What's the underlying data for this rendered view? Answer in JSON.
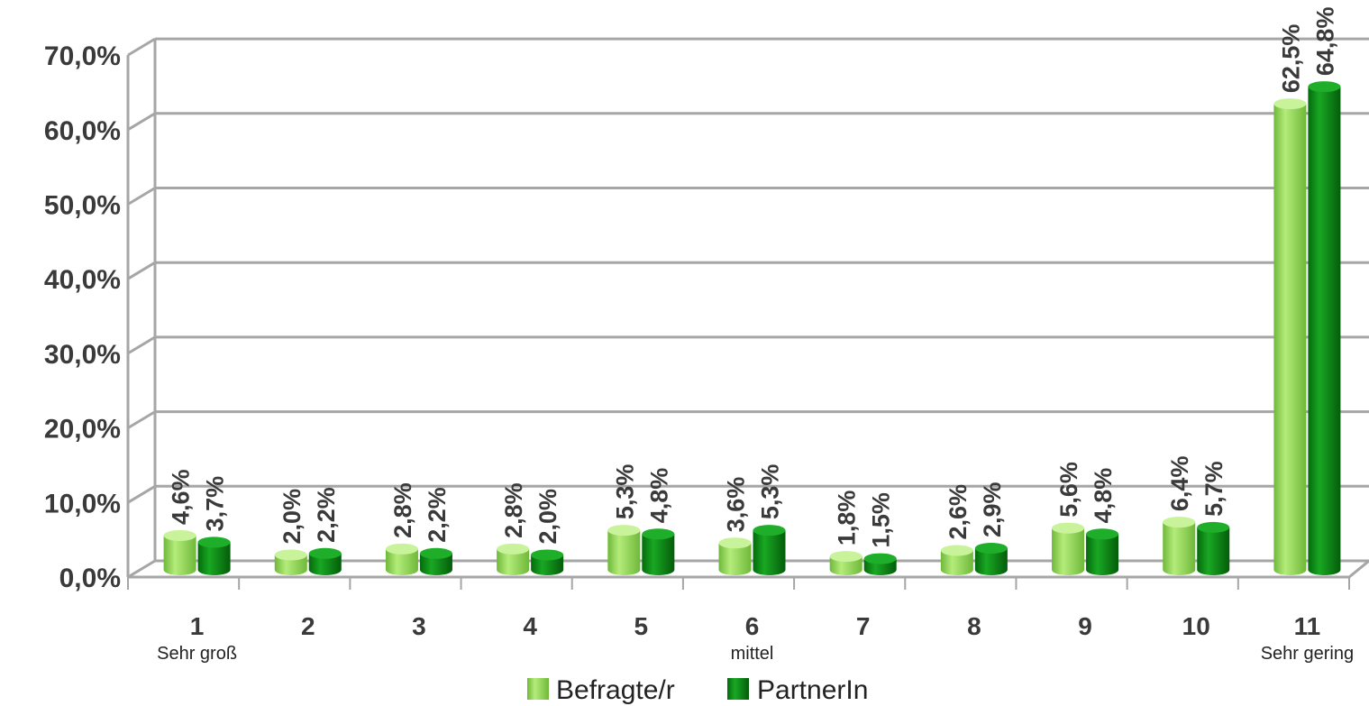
{
  "chart_data": {
    "type": "bar",
    "categories": [
      "1",
      "2",
      "3",
      "4",
      "5",
      "6",
      "7",
      "8",
      "9",
      "10",
      "11"
    ],
    "category_sublabels": [
      "Sehr groß",
      "",
      "",
      "",
      "",
      "mittel",
      "",
      "",
      "",
      "",
      "Sehr gering"
    ],
    "series": [
      {
        "name": "Befragte/r",
        "color": "#8fd14f",
        "values": [
          4.6,
          2.0,
          2.8,
          2.8,
          5.3,
          3.6,
          1.8,
          2.6,
          5.6,
          6.4,
          62.5
        ],
        "labels": [
          "4,6%",
          "2,0%",
          "2,8%",
          "2,8%",
          "5,3%",
          "3,6%",
          "1,8%",
          "2,6%",
          "5,6%",
          "6,4%",
          "62,5%"
        ]
      },
      {
        "name": "PartnerIn",
        "color": "#0a8a14",
        "values": [
          3.7,
          2.2,
          2.2,
          2.0,
          4.8,
          5.3,
          1.5,
          2.9,
          4.8,
          5.7,
          64.8
        ],
        "labels": [
          "3,7%",
          "2,2%",
          "2,2%",
          "2,0%",
          "4,8%",
          "5,3%",
          "1,5%",
          "2,9%",
          "4,8%",
          "5,7%",
          "64,8%"
        ]
      }
    ],
    "yticks": [
      "0,0%",
      "10,0%",
      "20,0%",
      "30,0%",
      "40,0%",
      "50,0%",
      "60,0%",
      "70,0%"
    ],
    "ylim": [
      0,
      70
    ],
    "grid": true,
    "legend_position": "bottom"
  }
}
